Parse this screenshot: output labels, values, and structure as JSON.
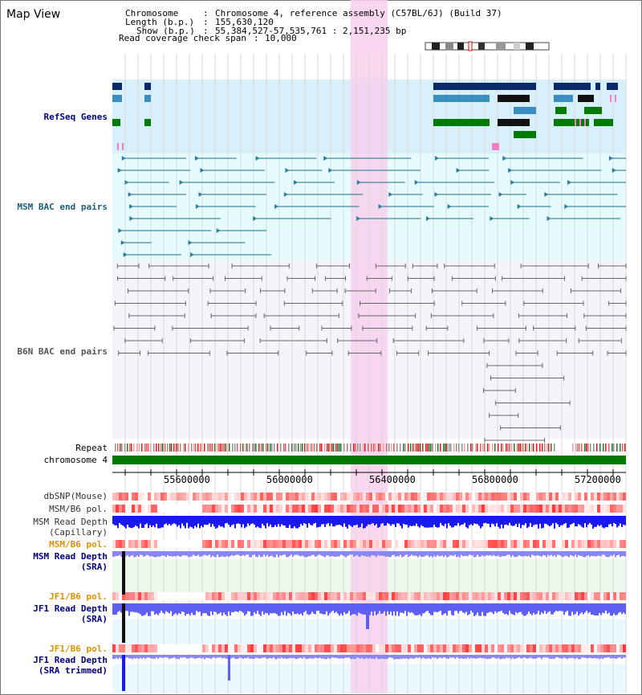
{
  "view_title": "Map View",
  "info": {
    "chromosome_label": "Chromosome",
    "chromosome_value": "Chromosome 4, reference assembly (C57BL/6J) (Build 37)",
    "length_label": "Length (b.p.)",
    "length_value": "155,630,120",
    "show_label": "Show (b.p.)",
    "show_value": "55,384,527-57,535,761 : 2,151,235 bp",
    "coverage_label": "Read coverage check span",
    "coverage_value": "10,000"
  },
  "tracks": {
    "refseq": "RefSeq Genes",
    "msm_bac": "MSM BAC end pairs",
    "b6n_bac": "B6N BAC end pairs",
    "repeat": "Repeat",
    "chromosome": "chromosome 4",
    "dbsnp": "dbSNP(Mouse)",
    "msm_b6_pol_1": "MSM/B6 pol.",
    "msm_read_depth_cap_1": "MSM Read Depth",
    "msm_read_depth_cap_2": "(Capillary)",
    "msm_b6_pol_2": "MSM/B6 pol.",
    "msm_read_depth_sra_1": "MSM Read Depth",
    "msm_read_depth_sra_2": "(SRA)",
    "jf1_b6_pol_1": "JF1/B6 pol.",
    "jf1_read_depth_sra_1": "JF1 Read Depth",
    "jf1_read_depth_sra_2": "(SRA)",
    "jf1_b6_pol_2": "JF1/B6 pol.",
    "jf1_read_depth_trim_1": "JF1 Read Depth",
    "jf1_read_depth_trim_2": "(SRA trimmed)"
  },
  "axis_ticks": [
    "55600000",
    "56000000",
    "56400000",
    "56800000",
    "57200000"
  ],
  "colors": {
    "highlight": "#f8d0ee",
    "refseq_bg": "#d8f0fc",
    "msm_bac_bg": "#e6fbfd",
    "chromosome_bar": "#007a00",
    "depth_blue": "#1a1aee",
    "depth_light": "#8888f0"
  }
}
